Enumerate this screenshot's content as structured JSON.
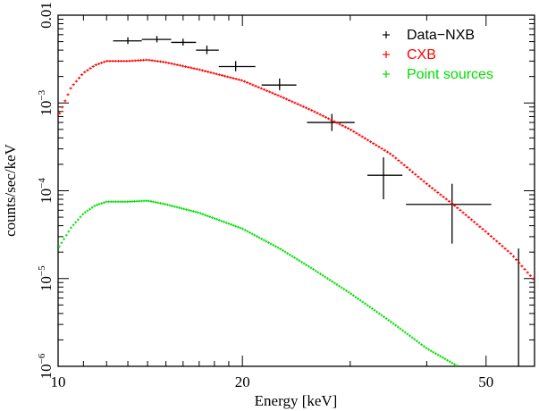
{
  "chart_data": {
    "type": "scatter",
    "xlabel": "Energy [keV]",
    "ylabel": "counts/sec/keV",
    "x_scale": "log",
    "y_scale": "log",
    "xlim": [
      10,
      60
    ],
    "ylim": [
      1e-06,
      0.01
    ],
    "x_ticks": [
      {
        "value": 10,
        "label": "10"
      },
      {
        "value": 20,
        "label": "20"
      },
      {
        "value": 50,
        "label": "50"
      }
    ],
    "y_ticks": [
      {
        "value": 0.01,
        "base": "0.01",
        "exp": ""
      },
      {
        "value": 0.001,
        "base": "10",
        "exp": "−3"
      },
      {
        "value": 0.0001,
        "base": "10",
        "exp": "−4"
      },
      {
        "value": 1e-05,
        "base": "10",
        "exp": "−5"
      },
      {
        "value": 1e-06,
        "base": "10",
        "exp": "−6"
      }
    ],
    "legend": {
      "placement": "top-right",
      "entries": [
        {
          "name": "Data−NXB",
          "color": "#000000"
        },
        {
          "name": "CXB",
          "color": "#ff0000"
        },
        {
          "name": "Point sources",
          "color": "#00dd00"
        }
      ]
    },
    "series": [
      {
        "name": "Data−NXB",
        "color": "#000000",
        "style": "errorbar",
        "points": [
          {
            "x": 13.0,
            "xerr": [
              12.3,
              13.7
            ],
            "y": 0.0051,
            "yerr": [
              0.0047,
              0.0056
            ]
          },
          {
            "x": 14.5,
            "xerr": [
              13.7,
              15.3
            ],
            "y": 0.0053,
            "yerr": [
              0.0049,
              0.0058
            ]
          },
          {
            "x": 16.0,
            "xerr": [
              15.3,
              16.8
            ],
            "y": 0.0049,
            "yerr": [
              0.0045,
              0.0054
            ]
          },
          {
            "x": 17.5,
            "xerr": [
              16.8,
              18.3
            ],
            "y": 0.004,
            "yerr": [
              0.0036,
              0.0045
            ]
          },
          {
            "x": 19.5,
            "xerr": [
              18.3,
              21.0
            ],
            "y": 0.0026,
            "yerr": [
              0.0023,
              0.003
            ]
          },
          {
            "x": 23.0,
            "xerr": [
              21.5,
              24.5
            ],
            "y": 0.0016,
            "yerr": [
              0.0014,
              0.0019
            ]
          },
          {
            "x": 28.0,
            "xerr": [
              25.5,
              30.5
            ],
            "y": 0.0006,
            "yerr": [
              0.00048,
              0.00075
            ]
          },
          {
            "x": 34.0,
            "xerr": [
              32.0,
              36.5
            ],
            "y": 0.00015,
            "yerr": [
              8e-05,
              0.00024
            ]
          },
          {
            "x": 44.0,
            "xerr": [
              37.0,
              51.0
            ],
            "y": 7e-05,
            "yerr": [
              2.5e-05,
              0.00012
            ]
          },
          {
            "x": 56.5,
            "xerr": [
              56.3,
              56.7
            ],
            "y": 1.5e-05,
            "yerr": [
              1e-06,
              2.2e-05
            ]
          }
        ]
      },
      {
        "name": "CXB",
        "color": "#ff0000",
        "style": "step",
        "points": [
          {
            "x": 10.0,
            "y": 0.0007
          },
          {
            "x": 10.5,
            "y": 0.0015
          },
          {
            "x": 11.0,
            "y": 0.0022
          },
          {
            "x": 11.5,
            "y": 0.0027
          },
          {
            "x": 12.0,
            "y": 0.003
          },
          {
            "x": 13.0,
            "y": 0.003
          },
          {
            "x": 14.0,
            "y": 0.0031
          },
          {
            "x": 15.0,
            "y": 0.0029
          },
          {
            "x": 17.0,
            "y": 0.0024
          },
          {
            "x": 20.0,
            "y": 0.0018
          },
          {
            "x": 23.0,
            "y": 0.0012
          },
          {
            "x": 26.0,
            "y": 0.00082
          },
          {
            "x": 30.0,
            "y": 0.0005
          },
          {
            "x": 35.0,
            "y": 0.00026
          },
          {
            "x": 40.0,
            "y": 0.00012
          },
          {
            "x": 45.0,
            "y": 6.3e-05
          },
          {
            "x": 50.0,
            "y": 3.4e-05
          },
          {
            "x": 55.0,
            "y": 1.9e-05
          },
          {
            "x": 60.0,
            "y": 9.5e-06
          }
        ]
      },
      {
        "name": "Point sources",
        "color": "#00dd00",
        "style": "step",
        "points": [
          {
            "x": 10.0,
            "y": 2.2e-05
          },
          {
            "x": 10.5,
            "y": 3.8e-05
          },
          {
            "x": 11.0,
            "y": 5.5e-05
          },
          {
            "x": 11.5,
            "y": 6.8e-05
          },
          {
            "x": 12.0,
            "y": 7.5e-05
          },
          {
            "x": 13.0,
            "y": 7.5e-05
          },
          {
            "x": 14.0,
            "y": 7.7e-05
          },
          {
            "x": 15.0,
            "y": 7e-05
          },
          {
            "x": 17.0,
            "y": 5.6e-05
          },
          {
            "x": 20.0,
            "y": 3.7e-05
          },
          {
            "x": 23.0,
            "y": 2.2e-05
          },
          {
            "x": 26.0,
            "y": 1.3e-05
          },
          {
            "x": 30.0,
            "y": 6.8e-06
          },
          {
            "x": 35.0,
            "y": 3.2e-06
          },
          {
            "x": 40.0,
            "y": 1.6e-06
          },
          {
            "x": 45.0,
            "y": 1e-06
          }
        ]
      }
    ]
  }
}
